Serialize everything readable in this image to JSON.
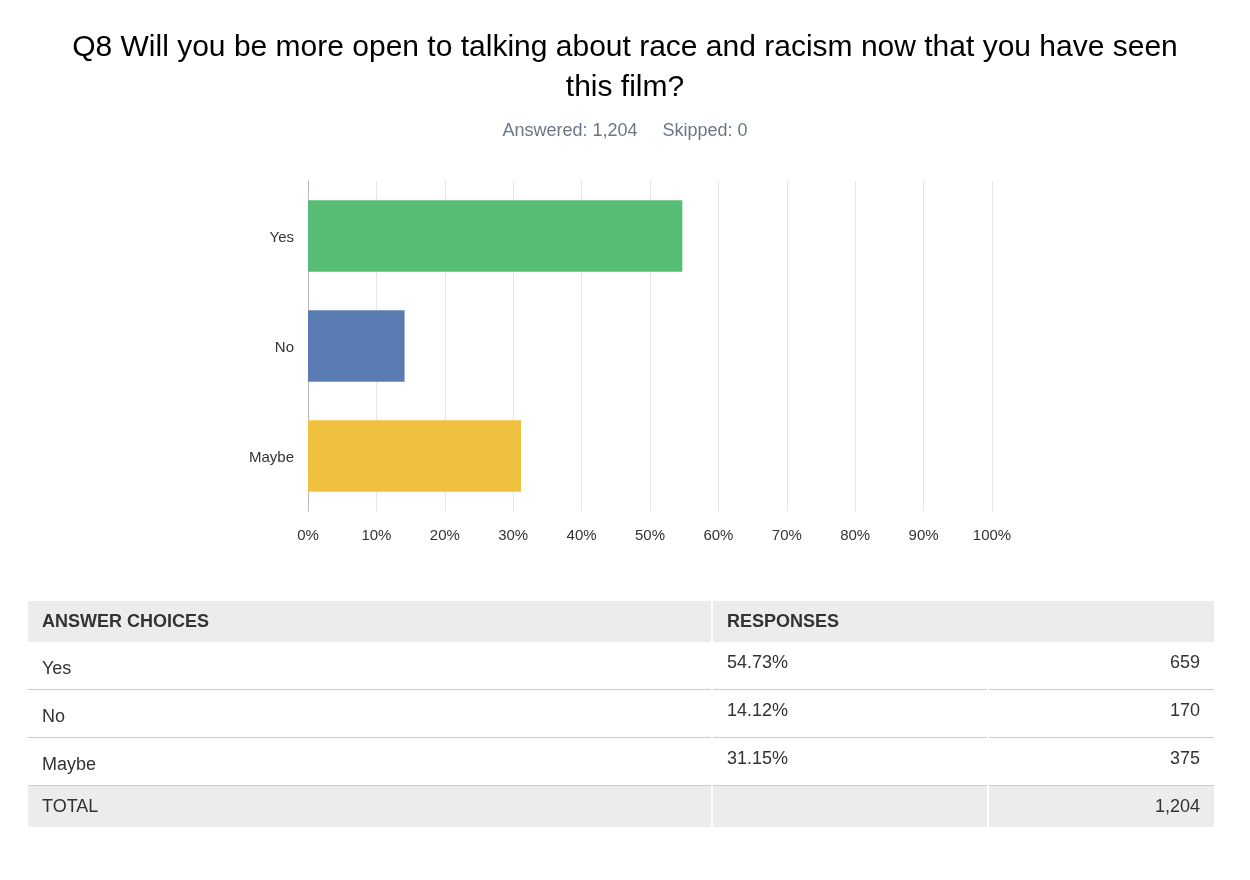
{
  "chart_data": {
    "type": "bar",
    "orientation": "horizontal",
    "title": "Q8 Will you be more open to talking about race and racism now that you have seen this film?",
    "subtitle": "Answered: 1,204     Skipped: 0",
    "categories": [
      "Yes",
      "No",
      "Maybe"
    ],
    "values": [
      54.73,
      14.12,
      31.15
    ],
    "colors": [
      "#57bd75",
      "#5b7cb2",
      "#f0c03f"
    ],
    "xlim": [
      0,
      100
    ],
    "xticks": [
      {
        "value": 0,
        "label": "0%"
      },
      {
        "value": 10,
        "label": "10%"
      },
      {
        "value": 20,
        "label": "20%"
      },
      {
        "value": 30,
        "label": "30%"
      },
      {
        "value": 40,
        "label": "40%"
      },
      {
        "value": 50,
        "label": "50%"
      },
      {
        "value": 60,
        "label": "60%"
      },
      {
        "value": 70,
        "label": "70%"
      },
      {
        "value": 80,
        "label": "80%"
      },
      {
        "value": 90,
        "label": "90%"
      },
      {
        "value": 100,
        "label": "100%"
      }
    ],
    "grid": "x",
    "annotations": [
      "ANSWER CHOICES",
      "RESPONSES",
      "54.73%",
      "659",
      "14.12%",
      "170",
      "31.15%",
      "375",
      "TOTAL",
      "1,204"
    ]
  }
}
